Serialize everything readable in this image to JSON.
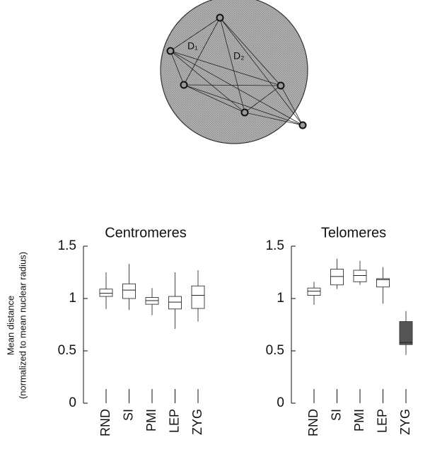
{
  "diagram": {
    "labels": [
      "D₁",
      "D₂"
    ]
  },
  "chart_data": [
    {
      "type": "box",
      "title": "Centromeres",
      "ylabel": [
        "Mean distance",
        "(normalized to mean nuclear radius)"
      ],
      "categories": [
        "RND",
        "SI",
        "PMI",
        "LEP",
        "ZYG"
      ],
      "boxes": [
        {
          "min": 0.9,
          "q1": 1.02,
          "median": 1.05,
          "q3": 1.09,
          "max": 1.25
        },
        {
          "min": 0.89,
          "q1": 1.0,
          "median": 1.08,
          "q3": 1.14,
          "max": 1.33
        },
        {
          "min": 0.84,
          "q1": 0.945,
          "median": 0.98,
          "q3": 1.01,
          "max": 1.1
        },
        {
          "min": 0.71,
          "q1": 0.9,
          "median": 0.965,
          "q3": 1.02,
          "max": 1.25
        },
        {
          "min": 0.78,
          "q1": 0.905,
          "median": 1.03,
          "q3": 1.12,
          "max": 1.27
        }
      ],
      "colors": [
        "#ffffff",
        "#ffffff",
        "#ffffff",
        "#ffffff",
        "#ffffff"
      ],
      "ylim": [
        0,
        1.5
      ],
      "yticks": [
        0,
        0.5,
        1,
        1.5
      ]
    },
    {
      "type": "box",
      "title": "Telomeres",
      "categories": [
        "RND",
        "SI",
        "PMI",
        "LEP",
        "ZYG"
      ],
      "boxes": [
        {
          "min": 0.94,
          "q1": 1.03,
          "median": 1.07,
          "q3": 1.1,
          "max": 1.16
        },
        {
          "min": 1.09,
          "q1": 1.13,
          "median": 1.21,
          "q3": 1.28,
          "max": 1.38
        },
        {
          "min": 1.13,
          "q1": 1.16,
          "median": 1.22,
          "q3": 1.27,
          "max": 1.36
        },
        {
          "min": 0.95,
          "q1": 1.11,
          "median": 1.18,
          "q3": 1.19,
          "max": 1.3
        },
        {
          "min": 0.46,
          "q1": 0.56,
          "median": 0.58,
          "q3": 0.78,
          "max": 0.88
        }
      ],
      "colors": [
        "#ffffff",
        "#ffffff",
        "#ffffff",
        "#ffffff",
        "#555555"
      ],
      "ylim": [
        0,
        1.5
      ],
      "yticks": [
        0,
        0.5,
        1,
        1.5
      ]
    }
  ]
}
